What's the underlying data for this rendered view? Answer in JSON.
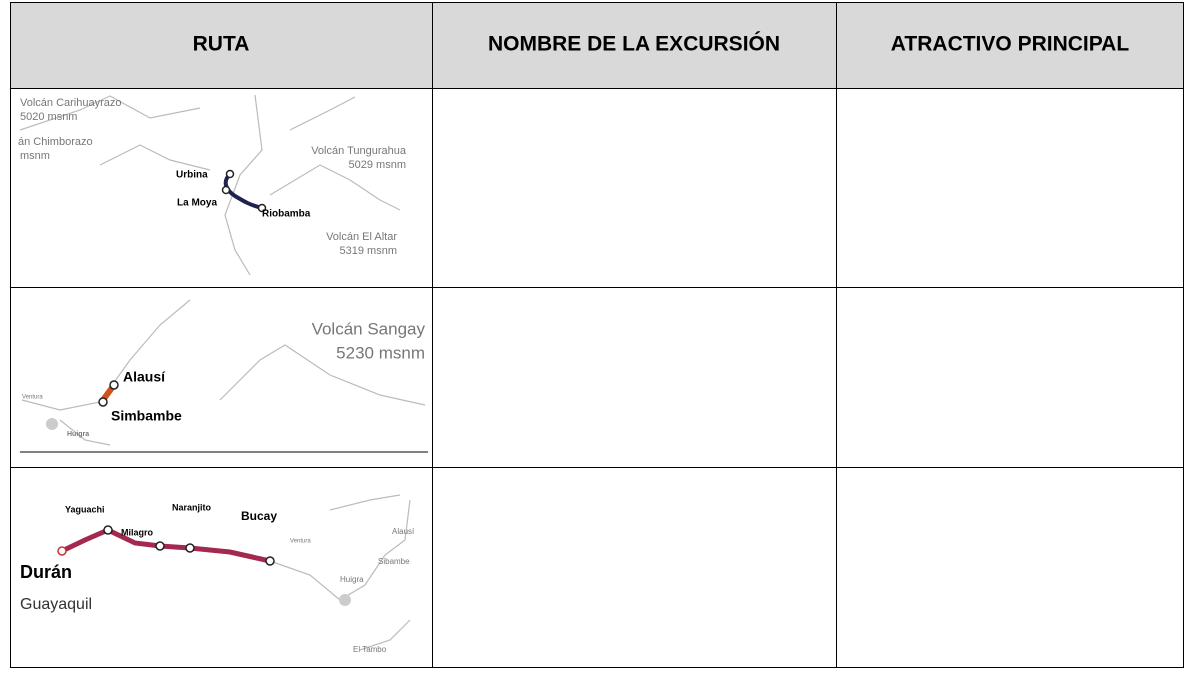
{
  "table": {
    "headers": [
      "RUTA",
      "NOMBRE DE LA EXCURSIÓN",
      "ATRACTIVO PRINCIPAL"
    ],
    "rows": [
      {
        "map": {
          "labels": [
            "Volcán Carihuayrazo",
            "5020 msnm",
            "án Chimborazo",
            "msnm",
            "Volcán Tungurahua",
            "5029 msnm",
            "Urbina",
            "La Moya",
            "Riobamba",
            "Volcán El Altar",
            "5319 msnm"
          ]
        }
      },
      {
        "map": {
          "labels": [
            "Volcán Sangay",
            "5230 msnm",
            "Alausí",
            "Simbambe",
            "Ventura",
            "Huigra"
          ]
        }
      },
      {
        "map": {
          "labels": [
            "Yaguachi",
            "Naranjito",
            "Bucay",
            "Milagro",
            "Durán",
            "Guayaquil",
            "Ventura",
            "Huigra",
            "Sibambe",
            "Alausí",
            "El Tambo"
          ]
        }
      }
    ]
  }
}
